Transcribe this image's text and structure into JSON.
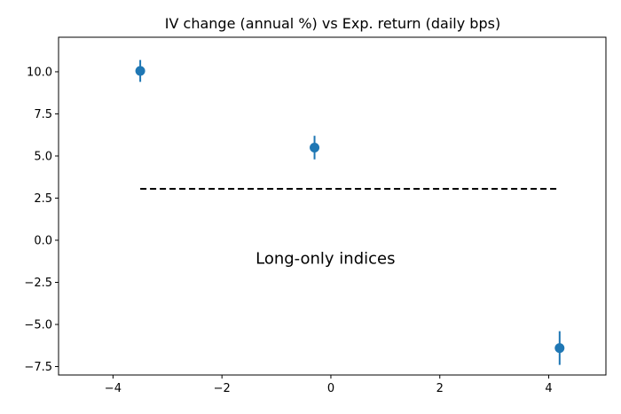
{
  "chart_data": {
    "type": "scatter",
    "title": "IV change (annual %) vs Exp. return (daily bps)",
    "xlabel": "",
    "ylabel": "",
    "xlim": [
      -5,
      5.05
    ],
    "ylim": [
      -8,
      12.05
    ],
    "grid": false,
    "legend": "none",
    "x_ticks": [
      -4,
      -2,
      0,
      2,
      4
    ],
    "x_tick_labels": [
      "−4",
      "−2",
      "0",
      "2",
      "4"
    ],
    "y_ticks": [
      10.0,
      7.5,
      5.0,
      2.5,
      0.0,
      -2.5,
      -5.0,
      -7.5
    ],
    "y_tick_labels": [
      "10.0",
      "7.5",
      "5.0",
      "2.5",
      "0.0",
      "−2.5",
      "−5.0",
      "−7.5"
    ],
    "series": [
      {
        "color": "#1f77b4",
        "points": [
          {
            "x": -3.5,
            "y": 10.05,
            "err": 0.65
          },
          {
            "x": -0.3,
            "y": 5.5,
            "err": 0.7
          },
          {
            "x": 4.2,
            "y": -6.4,
            "err": 1.0
          }
        ]
      }
    ],
    "reference_line": {
      "y": 3.05,
      "x_start": -3.5,
      "x_end": 4.2,
      "style": "dashed",
      "color": "#000000"
    },
    "annotation": {
      "text": "Long-only indices",
      "x": -0.1,
      "y": -1.4
    }
  }
}
